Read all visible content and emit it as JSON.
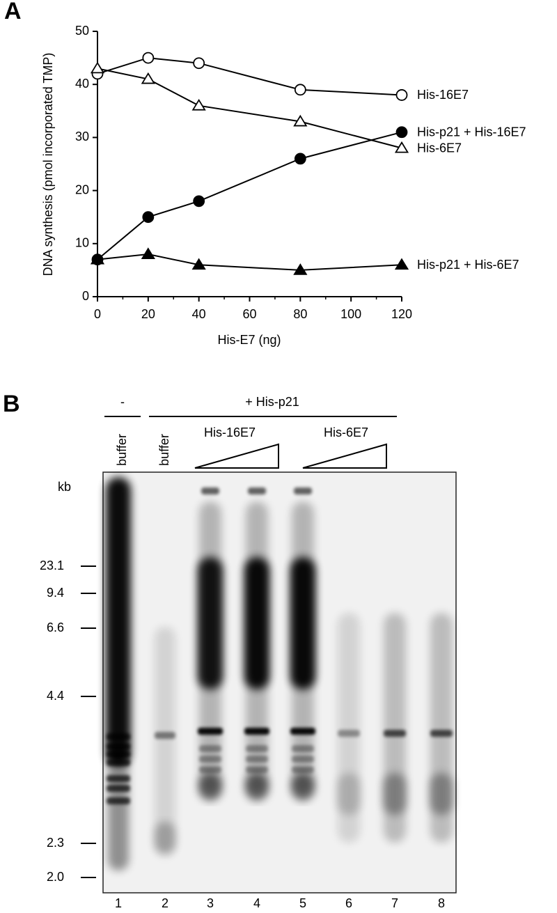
{
  "chart_data": {
    "type": "line",
    "panel": "A",
    "x_label": "His-E7 (ng)",
    "y_label": "DNA synthesis (pmol incorporated TMP)",
    "x": [
      0,
      20,
      40,
      80,
      120
    ],
    "series": [
      {
        "name": "His-16E7",
        "color": "#000000",
        "marker": "circle",
        "filled": false,
        "values": [
          42,
          45,
          44,
          39,
          38
        ]
      },
      {
        "name": "His-6E7",
        "color": "#000000",
        "marker": "triangle",
        "filled": false,
        "values": [
          43,
          41,
          36,
          33,
          28
        ]
      },
      {
        "name": "His-p21 + His-16E7",
        "color": "#000000",
        "marker": "circle",
        "filled": true,
        "values": [
          7,
          15,
          18,
          26,
          31
        ]
      },
      {
        "name": "His-p21 + His-6E7",
        "color": "#000000",
        "marker": "triangle",
        "filled": true,
        "values": [
          7,
          8,
          6,
          5,
          6
        ]
      }
    ],
    "xlim": [
      0,
      120
    ],
    "xticks": [
      0,
      20,
      40,
      60,
      80,
      100,
      120
    ],
    "ylim": [
      0,
      50
    ],
    "yticks": [
      0,
      10,
      20,
      30,
      40,
      50
    ],
    "grid": false
  },
  "gel": {
    "panel": "B",
    "group_labels": [
      "-",
      "+ His-p21"
    ],
    "lane_headers": [
      "buffer",
      "buffer",
      "His-16E7",
      "His-6E7"
    ],
    "size_unit": "kb",
    "size_markers": [
      "23.1",
      "9.4",
      "6.6",
      "4.4",
      "2.3",
      "2.0"
    ],
    "lanes": [
      "1",
      "2",
      "3",
      "4",
      "5",
      "6",
      "7",
      "8"
    ]
  }
}
